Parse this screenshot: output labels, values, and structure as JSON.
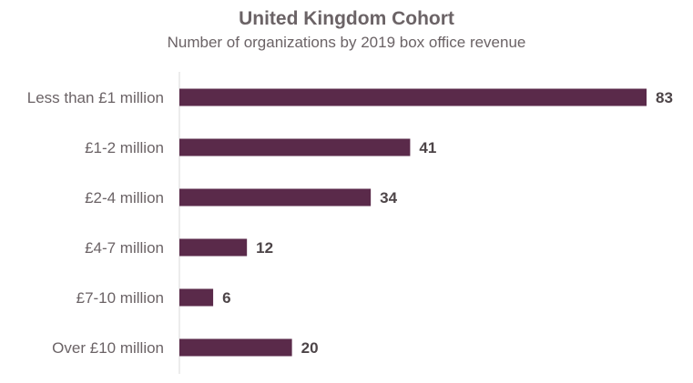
{
  "chart_data": {
    "type": "bar",
    "orientation": "horizontal",
    "title": "United Kingdom Cohort",
    "subtitle": "Number of organizations by 2019 box office revenue",
    "xlabel": "",
    "ylabel": "",
    "categories": [
      "Less than £1 million",
      "£1-2 million",
      "£2-4 million",
      "£4-7 million",
      "£7-10 million",
      "Over £10 million"
    ],
    "values": [
      83,
      41,
      34,
      12,
      6,
      20
    ],
    "xlim": [
      0,
      83
    ],
    "grid": false,
    "data_labels": true,
    "bar_color": "#5a2a4a",
    "axis_color": "#d9d9d9"
  }
}
